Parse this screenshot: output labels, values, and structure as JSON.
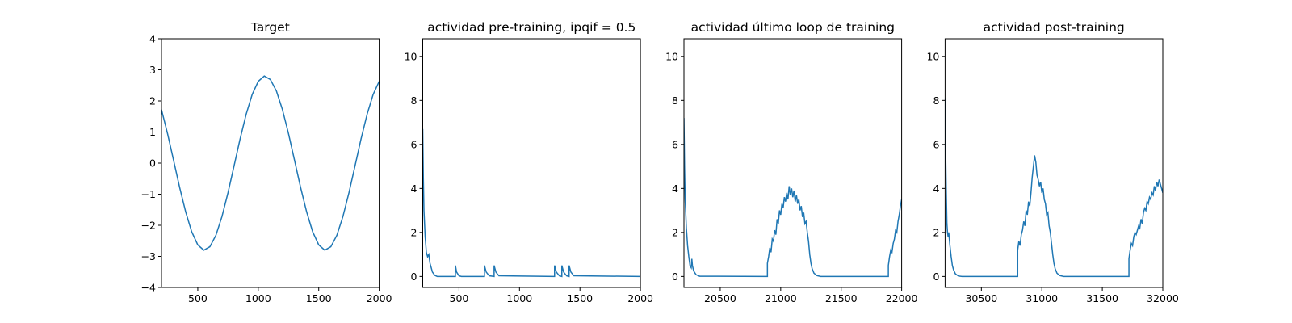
{
  "chart_data": [
    {
      "type": "line",
      "title": "Target",
      "x": [
        200,
        250,
        300,
        350,
        400,
        450,
        500,
        550,
        600,
        650,
        700,
        750,
        800,
        850,
        900,
        950,
        1000,
        1050,
        1100,
        1150,
        1200,
        1250,
        1300,
        1350,
        1400,
        1450,
        1500,
        1550,
        1600,
        1650,
        1700,
        1750,
        1800,
        1850,
        1900,
        1950,
        2000
      ],
      "values": [
        1.72,
        0.95,
        0.09,
        -0.78,
        -1.57,
        -2.21,
        -2.63,
        -2.8,
        -2.69,
        -2.32,
        -1.72,
        -0.95,
        -0.09,
        0.78,
        1.57,
        2.21,
        2.63,
        2.8,
        2.69,
        2.32,
        1.72,
        0.95,
        0.09,
        -0.78,
        -1.57,
        -2.21,
        -2.63,
        -2.8,
        -2.69,
        -2.32,
        -1.72,
        -0.95,
        -0.09,
        0.78,
        1.57,
        2.21,
        2.63
      ],
      "color": "#1f77b4",
      "xlim": [
        200,
        2000
      ],
      "xticks": [
        500,
        1000,
        1500,
        2000
      ],
      "ylim": [
        -4,
        4
      ],
      "yticks": [
        {
          "value": -4,
          "label": "−4"
        },
        {
          "value": -3,
          "label": "−3"
        },
        {
          "value": -2,
          "label": "−2"
        },
        {
          "value": -1,
          "label": "−1"
        },
        0,
        1,
        2,
        3,
        4
      ]
    },
    {
      "type": "line",
      "title": "actividad pre-training, ipqif = 0.5",
      "x": [
        200,
        205,
        210,
        220,
        230,
        240,
        250,
        260,
        270,
        280,
        300,
        320,
        470,
        470,
        480,
        500,
        520,
        710,
        710,
        725,
        750,
        790,
        790,
        805,
        830,
        1290,
        1290,
        1305,
        1330,
        1350,
        1350,
        1365,
        1390,
        1410,
        1410,
        1425,
        1450,
        1998,
        2000
      ],
      "values": [
        6.7,
        4.5,
        3.0,
        1.8,
        1.1,
        0.9,
        1.0,
        0.6,
        0.4,
        0.2,
        0.05,
        0,
        0,
        0.5,
        0.2,
        0.03,
        0,
        0,
        0.5,
        0.2,
        0.03,
        0,
        0.5,
        0.2,
        0.03,
        0,
        0.5,
        0.2,
        0.03,
        0,
        0.5,
        0.2,
        0.03,
        0,
        0.5,
        0.2,
        0.03,
        0,
        0.5
      ],
      "color": "#1f77b4",
      "xlim": [
        200,
        2000
      ],
      "xticks": [
        500,
        1000,
        1500,
        2000
      ],
      "ylim": [
        -0.5,
        10.8
      ],
      "yticks": [
        0,
        2,
        4,
        6,
        8,
        10
      ]
    },
    {
      "type": "line",
      "title": "actividad último loop de training",
      "x": [
        20200,
        20205,
        20210,
        20220,
        20230,
        20240,
        20250,
        20260,
        20265,
        20270,
        20280,
        20300,
        20330,
        20890,
        20890,
        20900,
        20910,
        20920,
        20930,
        20940,
        20950,
        20960,
        20970,
        20980,
        20990,
        21000,
        21010,
        21020,
        21030,
        21040,
        21050,
        21060,
        21070,
        21080,
        21090,
        21100,
        21110,
        21120,
        21130,
        21140,
        21150,
        21160,
        21170,
        21180,
        21190,
        21200,
        21210,
        21220,
        21230,
        21240,
        21250,
        21260,
        21275,
        21300,
        21330,
        21890,
        21890,
        21900,
        21910,
        21920,
        21930,
        21940,
        21950,
        21960,
        21970,
        21980,
        21990,
        22000
      ],
      "values": [
        7.2,
        5.0,
        3.5,
        2.2,
        1.4,
        0.9,
        0.5,
        0.4,
        0.8,
        0.5,
        0.25,
        0.08,
        0.01,
        0,
        0.6,
        0.9,
        1.3,
        1.1,
        1.7,
        1.6,
        2.1,
        1.9,
        2.6,
        2.4,
        3.0,
        2.8,
        3.3,
        3.1,
        3.6,
        3.4,
        3.8,
        3.5,
        4.1,
        3.7,
        4.0,
        3.6,
        3.9,
        3.4,
        3.7,
        3.3,
        3.5,
        3.0,
        3.2,
        2.7,
        2.9,
        2.4,
        2.5,
        2.0,
        1.6,
        1.0,
        0.6,
        0.35,
        0.15,
        0.04,
        0,
        0,
        0.5,
        0.9,
        1.2,
        1.1,
        1.5,
        1.7,
        2.1,
        2.0,
        2.5,
        2.8,
        3.2,
        3.5
      ],
      "color": "#1f77b4",
      "xlim": [
        20200,
        22000
      ],
      "xticks": [
        20500,
        21000,
        21500,
        22000
      ],
      "ylim": [
        -0.5,
        10.8
      ],
      "yticks": [
        0,
        2,
        4,
        6,
        8,
        10
      ]
    },
    {
      "type": "line",
      "title": "actividad post-training",
      "x": [
        30200,
        30205,
        30210,
        30215,
        30220,
        30225,
        30230,
        30240,
        30250,
        30260,
        30270,
        30285,
        30310,
        30340,
        30800,
        30800,
        30810,
        30820,
        30830,
        30840,
        30850,
        30860,
        30870,
        30880,
        30890,
        30900,
        30910,
        30920,
        30930,
        30940,
        30950,
        30960,
        30970,
        30980,
        30990,
        31000,
        31010,
        31020,
        31030,
        31040,
        31050,
        31060,
        31070,
        31080,
        31090,
        31100,
        31110,
        31125,
        31150,
        31180,
        31720,
        31720,
        31730,
        31740,
        31750,
        31760,
        31770,
        31780,
        31790,
        31800,
        31810,
        31820,
        31830,
        31840,
        31850,
        31860,
        31870,
        31880,
        31890,
        31900,
        31910,
        31920,
        31930,
        31940,
        31950,
        31960,
        31970,
        31980,
        31990,
        32000
      ],
      "values": [
        8.1,
        5.5,
        3.8,
        2.4,
        2.0,
        1.8,
        2.0,
        1.4,
        0.9,
        0.5,
        0.3,
        0.12,
        0.02,
        0,
        0,
        1.2,
        1.6,
        1.4,
        1.9,
        2.1,
        2.5,
        2.3,
        3.0,
        2.8,
        3.4,
        3.2,
        3.8,
        4.5,
        5.0,
        5.5,
        5.2,
        4.6,
        4.4,
        4.1,
        4.3,
        3.8,
        4.0,
        3.5,
        3.3,
        2.8,
        2.9,
        2.3,
        2.0,
        1.5,
        1.0,
        0.6,
        0.35,
        0.15,
        0.04,
        0,
        0,
        0.8,
        1.2,
        1.5,
        1.4,
        1.8,
        2.0,
        1.9,
        2.1,
        2.3,
        2.2,
        2.6,
        2.4,
        2.9,
        3.1,
        3.0,
        3.4,
        3.3,
        3.6,
        3.5,
        3.8,
        3.7,
        4.1,
        3.9,
        4.3,
        4.1,
        4.4,
        4.2,
        4.0,
        3.8
      ],
      "color": "#1f77b4",
      "xlim": [
        30200,
        32000
      ],
      "xticks": [
        30500,
        31000,
        31500,
        32000
      ],
      "ylim": [
        -0.5,
        10.8
      ],
      "yticks": [
        0,
        2,
        4,
        6,
        8,
        10
      ]
    }
  ]
}
